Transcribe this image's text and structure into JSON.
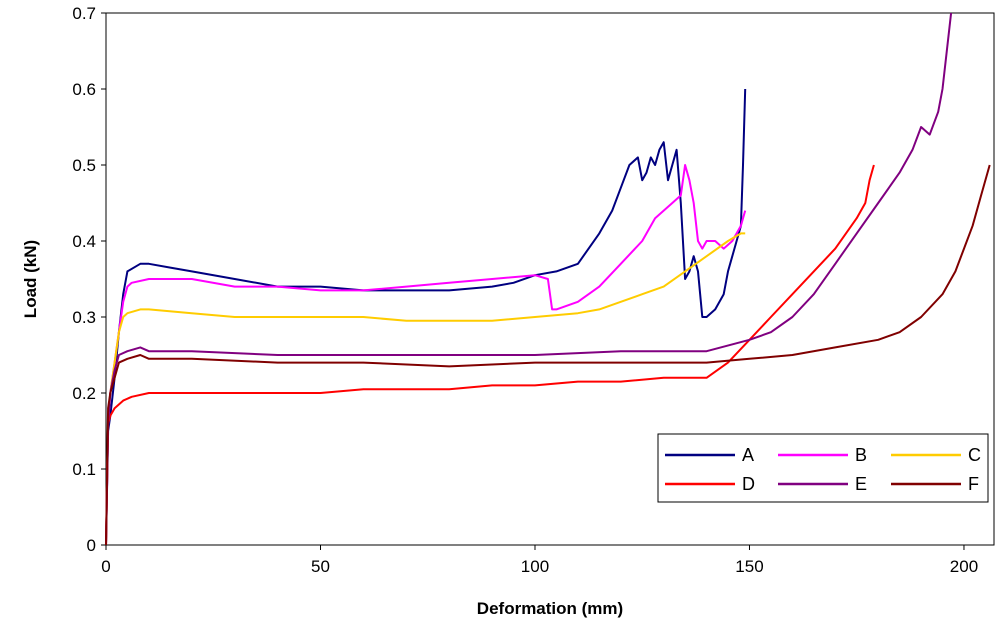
{
  "chart_data": {
    "type": "line",
    "title": "",
    "xlabel": "Deformation (mm)",
    "ylabel": "Load (kN)",
    "xlim": [
      0,
      207
    ],
    "ylim": [
      0,
      0.7
    ],
    "x_ticks": [
      0,
      50,
      100,
      150,
      200
    ],
    "y_ticks": [
      0,
      0.1,
      0.2,
      0.3,
      0.4,
      0.5,
      0.6,
      0.7
    ],
    "grid": false,
    "legend_position": "bottom-right",
    "series": [
      {
        "name": "A",
        "color": "#000080",
        "x": [
          0,
          0.5,
          1,
          2,
          3,
          4,
          5,
          8,
          10,
          15,
          20,
          30,
          40,
          50,
          60,
          70,
          80,
          90,
          95,
          100,
          105,
          110,
          115,
          118,
          120,
          122,
          124,
          125,
          126,
          127,
          128,
          129,
          130,
          131,
          132,
          133,
          134,
          135,
          136,
          137,
          138,
          139,
          140,
          142,
          144,
          145,
          146,
          147,
          148,
          148.5,
          149
        ],
        "y": [
          0,
          0.15,
          0.17,
          0.22,
          0.28,
          0.33,
          0.36,
          0.37,
          0.37,
          0.365,
          0.36,
          0.35,
          0.34,
          0.34,
          0.335,
          0.335,
          0.335,
          0.34,
          0.345,
          0.355,
          0.36,
          0.37,
          0.41,
          0.44,
          0.47,
          0.5,
          0.51,
          0.48,
          0.49,
          0.51,
          0.5,
          0.52,
          0.53,
          0.48,
          0.5,
          0.52,
          0.45,
          0.35,
          0.36,
          0.38,
          0.36,
          0.3,
          0.3,
          0.31,
          0.33,
          0.36,
          0.38,
          0.4,
          0.42,
          0.5,
          0.6
        ]
      },
      {
        "name": "B",
        "color": "#FF00FF",
        "x": [
          0,
          0.5,
          1,
          2,
          3,
          4,
          5,
          6,
          10,
          20,
          30,
          40,
          50,
          60,
          70,
          80,
          90,
          100,
          103,
          104,
          105,
          110,
          115,
          120,
          125,
          128,
          130,
          132,
          134,
          135,
          136,
          137,
          138,
          139,
          140,
          142,
          144,
          146,
          148,
          149
        ],
        "y": [
          0,
          0.16,
          0.2,
          0.24,
          0.28,
          0.32,
          0.34,
          0.345,
          0.35,
          0.35,
          0.34,
          0.34,
          0.335,
          0.335,
          0.34,
          0.345,
          0.35,
          0.355,
          0.35,
          0.31,
          0.31,
          0.32,
          0.34,
          0.37,
          0.4,
          0.43,
          0.44,
          0.45,
          0.46,
          0.5,
          0.48,
          0.45,
          0.4,
          0.39,
          0.4,
          0.4,
          0.39,
          0.4,
          0.42,
          0.44
        ]
      },
      {
        "name": "C",
        "color": "#FFCC00",
        "x": [
          0,
          0.5,
          1,
          2,
          3,
          4,
          5,
          8,
          10,
          20,
          30,
          40,
          50,
          60,
          70,
          80,
          90,
          100,
          110,
          115,
          120,
          125,
          130,
          135,
          140,
          145,
          148,
          149
        ],
        "y": [
          0,
          0.17,
          0.2,
          0.24,
          0.28,
          0.3,
          0.305,
          0.31,
          0.31,
          0.305,
          0.3,
          0.3,
          0.3,
          0.3,
          0.295,
          0.295,
          0.295,
          0.3,
          0.305,
          0.31,
          0.32,
          0.33,
          0.34,
          0.36,
          0.38,
          0.4,
          0.41,
          0.41
        ]
      },
      {
        "name": "D",
        "color": "#FF0000",
        "x": [
          0,
          0.5,
          1,
          2,
          4,
          6,
          10,
          20,
          30,
          40,
          50,
          60,
          70,
          80,
          90,
          100,
          110,
          120,
          130,
          140,
          145,
          150,
          155,
          160,
          165,
          170,
          175,
          177,
          178,
          179
        ],
        "y": [
          0,
          0.16,
          0.17,
          0.18,
          0.19,
          0.195,
          0.2,
          0.2,
          0.2,
          0.2,
          0.2,
          0.205,
          0.205,
          0.205,
          0.21,
          0.21,
          0.215,
          0.215,
          0.22,
          0.22,
          0.24,
          0.27,
          0.3,
          0.33,
          0.36,
          0.39,
          0.43,
          0.45,
          0.48,
          0.5
        ]
      },
      {
        "name": "E",
        "color": "#800080",
        "x": [
          0,
          0.5,
          1,
          2,
          3,
          5,
          8,
          10,
          20,
          40,
          60,
          80,
          100,
          120,
          140,
          150,
          155,
          160,
          165,
          170,
          175,
          180,
          185,
          188,
          190,
          192,
          194,
          195,
          196,
          197
        ],
        "y": [
          0,
          0.16,
          0.2,
          0.23,
          0.25,
          0.255,
          0.26,
          0.255,
          0.255,
          0.25,
          0.25,
          0.25,
          0.25,
          0.255,
          0.255,
          0.27,
          0.28,
          0.3,
          0.33,
          0.37,
          0.41,
          0.45,
          0.49,
          0.52,
          0.55,
          0.54,
          0.57,
          0.6,
          0.65,
          0.7
        ]
      },
      {
        "name": "F",
        "color": "#800000",
        "x": [
          0,
          0.5,
          1,
          2,
          3,
          5,
          8,
          10,
          20,
          40,
          60,
          80,
          100,
          120,
          140,
          150,
          160,
          170,
          180,
          185,
          190,
          195,
          198,
          200,
          202,
          204,
          206
        ],
        "y": [
          0,
          0.18,
          0.2,
          0.22,
          0.24,
          0.245,
          0.25,
          0.245,
          0.245,
          0.24,
          0.24,
          0.235,
          0.24,
          0.24,
          0.24,
          0.245,
          0.25,
          0.26,
          0.27,
          0.28,
          0.3,
          0.33,
          0.36,
          0.39,
          0.42,
          0.46,
          0.5
        ]
      }
    ]
  }
}
